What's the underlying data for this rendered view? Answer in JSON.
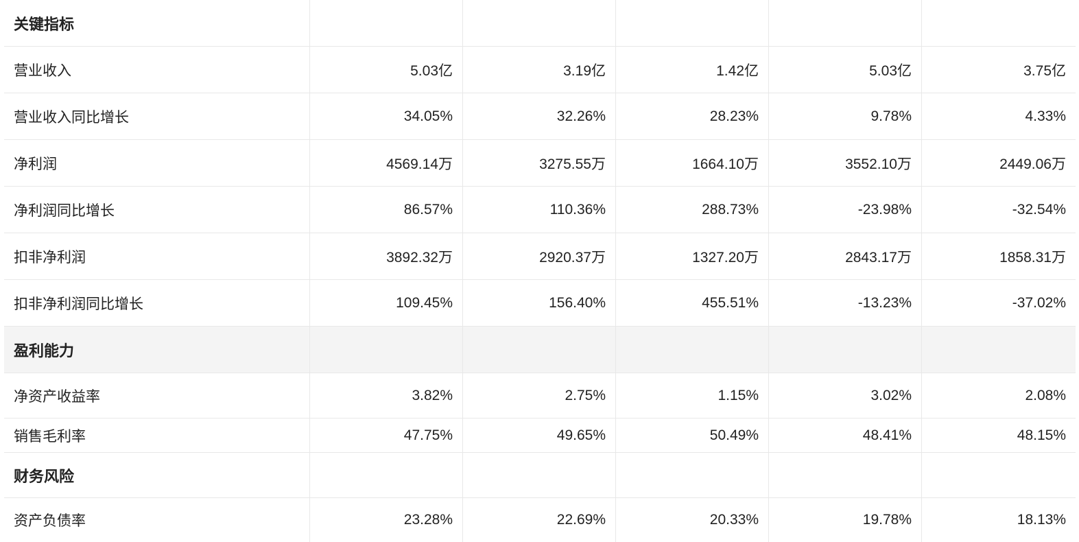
{
  "rows": [
    {
      "label": "关键指标",
      "section": true,
      "values": [
        "",
        "",
        "",
        "",
        ""
      ]
    },
    {
      "label": "营业收入",
      "values": [
        "5.03亿",
        "3.19亿",
        "1.42亿",
        "5.03亿",
        "3.75亿"
      ]
    },
    {
      "label": "营业收入同比增长",
      "values": [
        "34.05%",
        "32.26%",
        "28.23%",
        "9.78%",
        "4.33%"
      ]
    },
    {
      "label": "净利润",
      "values": [
        "4569.14万",
        "3275.55万",
        "1664.10万",
        "3552.10万",
        "2449.06万"
      ]
    },
    {
      "label": "净利润同比增长",
      "values": [
        "86.57%",
        "110.36%",
        "288.73%",
        "-23.98%",
        "-32.54%"
      ]
    },
    {
      "label": "扣非净利润",
      "values": [
        "3892.32万",
        "2920.37万",
        "1327.20万",
        "2843.17万",
        "1858.31万"
      ]
    },
    {
      "label": "扣非净利润同比增长",
      "values": [
        "109.45%",
        "156.40%",
        "455.51%",
        "-13.23%",
        "-37.02%"
      ]
    },
    {
      "label": "盈利能力",
      "section": true,
      "shaded": true,
      "values": [
        "",
        "",
        "",
        "",
        ""
      ]
    },
    {
      "label": "净资产收益率",
      "values": [
        "3.82%",
        "2.75%",
        "1.15%",
        "3.02%",
        "2.08%"
      ]
    },
    {
      "label": "销售毛利率",
      "values": [
        "47.75%",
        "49.65%",
        "50.49%",
        "48.41%",
        "48.15%"
      ]
    },
    {
      "label": "财务风险",
      "section": true,
      "values": [
        "",
        "",
        "",
        "",
        ""
      ]
    },
    {
      "label": "资产负债率",
      "values": [
        "23.28%",
        "22.69%",
        "20.33%",
        "19.78%",
        "18.13%"
      ]
    }
  ]
}
